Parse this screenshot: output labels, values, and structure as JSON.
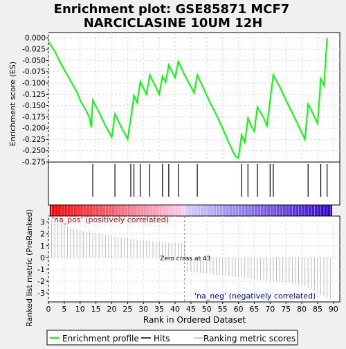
{
  "chart_data": {
    "type": "line",
    "title_line1": "Enrichment plot: GSE85871 MCF7",
    "title_line2": "NARCICLASINE 10UM 12H",
    "es_panel": {
      "ylabel": "Enrichment score (ES)",
      "ylim": [
        -0.275,
        0.012
      ],
      "yticks": [
        0.0,
        -0.025,
        -0.05,
        -0.075,
        -0.1,
        -0.125,
        -0.15,
        -0.175,
        -0.2,
        -0.225,
        -0.25,
        -0.275
      ],
      "ytick_labels": [
        "0.000",
        "-0.025",
        "-0.050",
        "-0.075",
        "-0.100",
        "-0.125",
        "-0.150",
        "-0.175",
        "-0.200",
        "-0.225",
        "-0.250",
        "-0.275"
      ],
      "line_color": "#00ff00",
      "points": [
        [
          0,
          -0.008
        ],
        [
          2,
          -0.03
        ],
        [
          4,
          -0.058
        ],
        [
          7,
          -0.095
        ],
        [
          9,
          -0.12
        ],
        [
          10,
          -0.138
        ],
        [
          12,
          -0.162
        ],
        [
          13,
          -0.178
        ],
        [
          13.5,
          -0.198
        ],
        [
          14,
          -0.138
        ],
        [
          16,
          -0.165
        ],
        [
          18,
          -0.195
        ],
        [
          20,
          -0.22
        ],
        [
          21,
          -0.168
        ],
        [
          23,
          -0.198
        ],
        [
          25,
          -0.224
        ],
        [
          26,
          -0.178
        ],
        [
          27,
          -0.128
        ],
        [
          28,
          -0.143
        ],
        [
          29,
          -0.097
        ],
        [
          31,
          -0.125
        ],
        [
          32,
          -0.082
        ],
        [
          34,
          -0.11
        ],
        [
          35,
          -0.125
        ],
        [
          36,
          -0.085
        ],
        [
          37,
          -0.098
        ],
        [
          38,
          -0.06
        ],
        [
          40,
          -0.088
        ],
        [
          41,
          -0.052
        ],
        [
          43,
          -0.082
        ],
        [
          45,
          -0.108
        ],
        [
          46,
          -0.122
        ],
        [
          47,
          -0.082
        ],
        [
          49,
          -0.112
        ],
        [
          51,
          -0.143
        ],
        [
          53,
          -0.17
        ],
        [
          55,
          -0.2
        ],
        [
          57,
          -0.233
        ],
        [
          59,
          -0.262
        ],
        [
          60,
          -0.266
        ],
        [
          61,
          -0.215
        ],
        [
          62,
          -0.232
        ],
        [
          63,
          -0.178
        ],
        [
          64,
          -0.195
        ],
        [
          65,
          -0.207
        ],
        [
          66,
          -0.153
        ],
        [
          68,
          -0.178
        ],
        [
          69,
          -0.195
        ],
        [
          70,
          -0.138
        ],
        [
          71,
          -0.082
        ],
        [
          73,
          -0.108
        ],
        [
          75,
          -0.138
        ],
        [
          77,
          -0.166
        ],
        [
          79,
          -0.195
        ],
        [
          81,
          -0.225
        ],
        [
          82,
          -0.147
        ],
        [
          83,
          -0.16
        ],
        [
          85,
          -0.19
        ],
        [
          86,
          -0.09
        ],
        [
          87,
          -0.105
        ],
        [
          88,
          0.0
        ]
      ]
    },
    "hits": [
      14,
      21,
      26,
      27,
      29,
      32,
      36,
      38,
      41,
      47,
      61,
      63,
      66,
      70,
      71,
      82,
      86,
      88
    ],
    "rank_panel": {
      "ylabel": "Ranked list metric (PreRanked)",
      "xlabel": "Rank in Ordered Dataset",
      "ylim": [
        -3.75,
        3.5
      ],
      "yticks": [
        3,
        2,
        1,
        0,
        -1,
        -2,
        -3
      ],
      "ytick_labels": [
        "3",
        "2",
        "1",
        "0",
        "-1",
        "-2",
        "-3"
      ],
      "xlim": [
        0,
        92
      ],
      "xticks": [
        0,
        5,
        10,
        15,
        20,
        25,
        30,
        35,
        40,
        45,
        50,
        55,
        60,
        65,
        70,
        75,
        80,
        85,
        90
      ],
      "xtick_labels": [
        "0",
        "5",
        "10",
        "15",
        "20",
        "25",
        "30",
        "35",
        "40",
        "45",
        "50",
        "55",
        "60",
        "65",
        "70",
        "75",
        "80",
        "85",
        "90"
      ],
      "values": [
        3.2,
        3.0,
        2.9,
        2.8,
        2.7,
        2.6,
        2.5,
        2.4,
        2.35,
        2.3,
        2.25,
        2.2,
        2.15,
        2.1,
        2.05,
        2.0,
        1.95,
        1.9,
        1.86,
        1.82,
        1.78,
        1.74,
        1.7,
        1.66,
        1.62,
        1.58,
        1.55,
        1.52,
        1.49,
        1.46,
        1.43,
        1.4,
        1.38,
        1.36,
        1.34,
        1.32,
        1.3,
        1.28,
        1.26,
        1.24,
        1.22,
        1.2,
        1.18,
        -1.2,
        -1.22,
        -1.25,
        -1.28,
        -1.31,
        -1.34,
        -1.37,
        -1.4,
        -1.43,
        -1.46,
        -1.49,
        -1.52,
        -1.55,
        -1.58,
        -1.61,
        -1.64,
        -1.67,
        -1.7,
        -1.73,
        -1.76,
        -1.79,
        -1.82,
        -1.85,
        -1.88,
        -1.91,
        -1.94,
        -1.97,
        -2.0,
        -2.03,
        -2.06,
        -2.1,
        -2.14,
        -2.18,
        -2.22,
        -2.27,
        -2.32,
        -2.38,
        -2.45,
        -2.55,
        -2.66,
        -2.8,
        -2.98,
        -3.15,
        -3.3,
        -3.45,
        -3.55
      ],
      "zero_cross_label": "Zero cross at 43",
      "zero_cross_rank": 43,
      "pos_label": "'na_pos' (positively correlated)",
      "neg_label": "'na_neg' (negatively correlated)",
      "pos_label_color": "#cc0000",
      "neg_label_color": "#0000cc"
    },
    "heatbar": {
      "start_color": "#ff0000",
      "mid_light_pos": "#ffccee",
      "mid_light_neg": "#ccccff",
      "end_color": "#3300cc"
    },
    "legend": {
      "items": [
        {
          "label": "Enrichment profile",
          "color": "#00ff00"
        },
        {
          "label": "Hits",
          "color": "#000000"
        },
        {
          "label": "Ranking metric scores",
          "color": "#bbbbbb"
        }
      ]
    }
  }
}
